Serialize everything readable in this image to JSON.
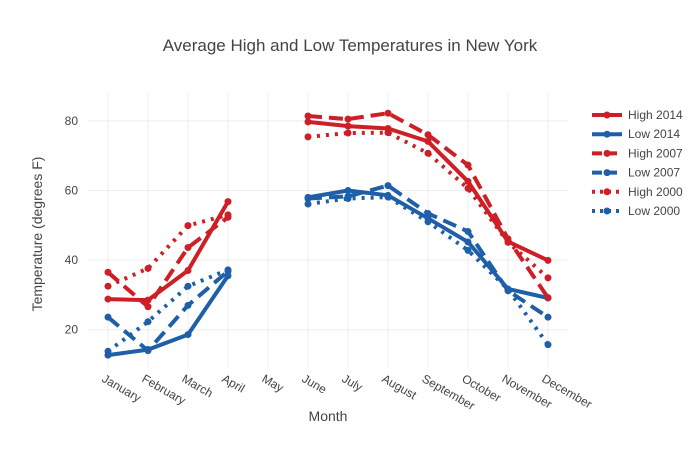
{
  "chart_data": {
    "type": "line",
    "title": "Average High and Low Temperatures in New York",
    "xlabel": "Month",
    "ylabel": "Temperature (degrees F)",
    "categories": [
      "January",
      "February",
      "March",
      "April",
      "May",
      "June",
      "July",
      "August",
      "September",
      "October",
      "November",
      "December"
    ],
    "y_ticks": [
      20,
      40,
      60,
      80
    ],
    "ylim": [
      9,
      88
    ],
    "grid": true,
    "legend_position": "right",
    "series": [
      {
        "name": "High 2014",
        "color": "#cd1f25",
        "dash": "solid",
        "values": [
          28.8,
          28.5,
          37.0,
          56.8,
          null,
          79.7,
          78.5,
          77.8,
          74.1,
          62.6,
          45.3,
          39.9
        ]
      },
      {
        "name": "Low 2014",
        "color": "#1f5fa8",
        "dash": "solid",
        "values": [
          12.7,
          14.3,
          18.6,
          35.5,
          null,
          58.0,
          60.0,
          58.6,
          52.0,
          45.2,
          31.7,
          29.1
        ]
      },
      {
        "name": "High 2007",
        "color": "#cd1f25",
        "dash": "dash",
        "values": [
          36.5,
          26.6,
          43.6,
          52.3,
          null,
          81.4,
          80.5,
          82.2,
          76.0,
          67.3,
          46.1,
          29.2
        ]
      },
      {
        "name": "Low 2007",
        "color": "#1f5fa8",
        "dash": "dash",
        "values": [
          23.6,
          14.0,
          27.0,
          36.8,
          null,
          57.7,
          58.3,
          61.4,
          53.4,
          48.2,
          31.2,
          23.6
        ]
      },
      {
        "name": "High 2000",
        "color": "#cd1f25",
        "dash": "dot",
        "values": [
          32.5,
          37.6,
          49.9,
          53.0,
          null,
          75.4,
          76.5,
          76.6,
          70.7,
          60.6,
          45.1,
          34.9
        ]
      },
      {
        "name": "Low 2000",
        "color": "#1f5fa8",
        "dash": "dot",
        "values": [
          13.8,
          22.3,
          32.5,
          37.2,
          null,
          56.1,
          57.7,
          58.1,
          51.0,
          42.8,
          31.6,
          15.7
        ]
      }
    ]
  }
}
